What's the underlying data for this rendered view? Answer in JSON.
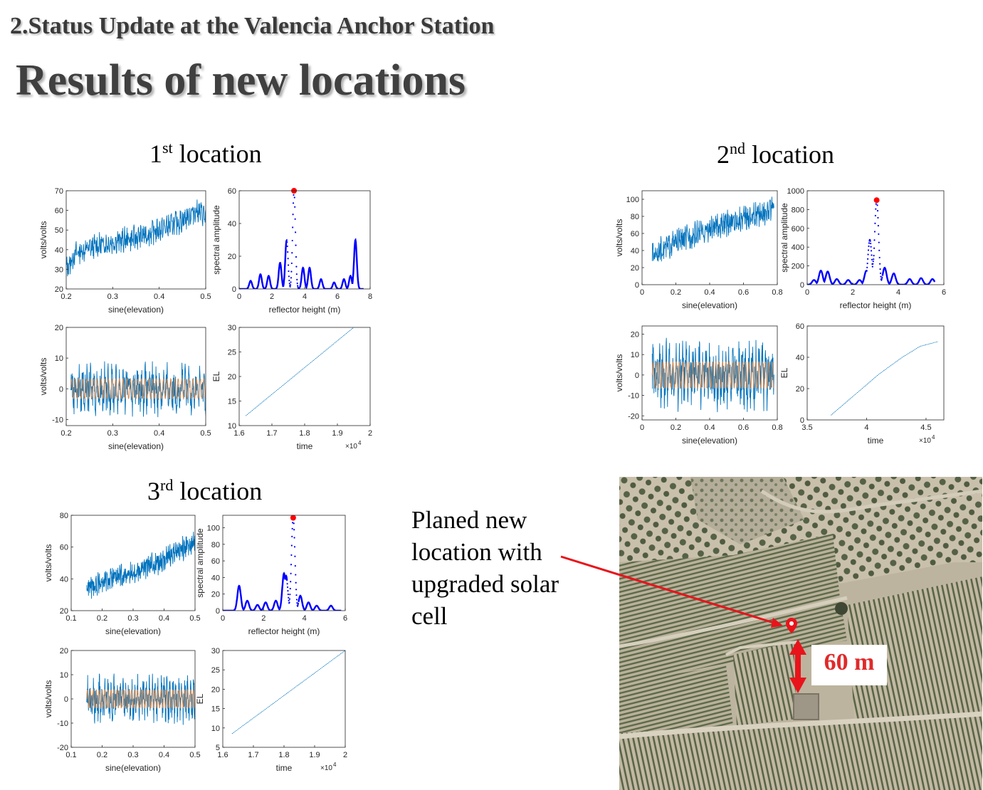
{
  "heading": {
    "section": "2.Status Update at the Valencia Anchor Station",
    "title": "Results of new locations"
  },
  "locations": [
    {
      "num": "1",
      "sup": "st",
      "word": "location"
    },
    {
      "num": "2",
      "sup": "nd",
      "word": "location"
    },
    {
      "num": "3",
      "sup": "rd",
      "word": "location"
    }
  ],
  "annotation": {
    "lines": [
      "Planed new",
      "location with",
      "upgraded solar",
      "cell"
    ],
    "distance": "60 m",
    "colors": {
      "arrow": "#e8141b",
      "distance_text": "#e02a2a"
    }
  },
  "colors": {
    "raw": "#0072bd",
    "fit": "#d08a55",
    "spectrum": "#0000ff",
    "peak": "#ff0000"
  },
  "chart_data": [
    {
      "id": "l1-raw",
      "location": 1,
      "type": "line",
      "kind": "raw",
      "xlabel": "sine(elevation)",
      "ylabel": "volts/volts",
      "xlim": [
        0.2,
        0.5
      ],
      "ylim": [
        20,
        70
      ],
      "xticks": [
        "0.2",
        "0.3",
        "0.4",
        "0.5"
      ],
      "yticks": [
        "20",
        "30",
        "40",
        "50",
        "60",
        "70"
      ],
      "trend": [
        [
          0.2,
          30
        ],
        [
          0.22,
          38
        ],
        [
          0.25,
          41
        ],
        [
          0.3,
          44
        ],
        [
          0.35,
          46
        ],
        [
          0.4,
          50
        ],
        [
          0.45,
          55
        ],
        [
          0.48,
          60
        ],
        [
          0.5,
          57
        ]
      ],
      "noise": 5
    },
    {
      "id": "l1-spec",
      "location": 1,
      "type": "line",
      "kind": "spectrum",
      "xlabel": "reflector height (m)",
      "ylabel": "spectral amplitude",
      "xlim": [
        0,
        8
      ],
      "ylim": [
        0,
        60
      ],
      "xticks": [
        "0",
        "2",
        "4",
        "6",
        "8"
      ],
      "yticks": [
        "0",
        "20",
        "40",
        "60"
      ],
      "peaks": [
        [
          0.7,
          5
        ],
        [
          1.3,
          9
        ],
        [
          1.8,
          8
        ],
        [
          2.5,
          16
        ],
        [
          2.9,
          30
        ],
        [
          3.35,
          60
        ],
        [
          3.9,
          13
        ],
        [
          4.3,
          13
        ],
        [
          5.0,
          6
        ],
        [
          5.8,
          4
        ],
        [
          6.4,
          6
        ],
        [
          6.8,
          8
        ],
        [
          7.1,
          30
        ]
      ],
      "dotted_range": [
        2.9,
        3.7
      ],
      "peak": [
        3.35,
        60
      ],
      "xmax_data": 7.6
    },
    {
      "id": "l1-detrended",
      "location": 1,
      "type": "line",
      "kind": "detrended",
      "xlabel": "sine(elevation)",
      "ylabel": "volts/volts",
      "xlim": [
        0.2,
        0.5
      ],
      "ylim": [
        -12,
        20
      ],
      "xticks": [
        "0.2",
        "0.3",
        "0.4",
        "0.5"
      ],
      "yticks": [
        "-10",
        "0",
        "10",
        "20"
      ],
      "amplitude": 6,
      "data_x": [
        0.21,
        0.5
      ]
    },
    {
      "id": "l1-el",
      "location": 1,
      "type": "line",
      "kind": "elevation",
      "xlabel": "time",
      "ylabel": "EL",
      "exponent": "×10",
      "exponent_power": "4",
      "xlim": [
        1.6,
        2.0
      ],
      "ylim": [
        10,
        30
      ],
      "xticks": [
        "1.6",
        "1.7",
        "1.8",
        "1.9",
        "2"
      ],
      "yticks": [
        "10",
        "15",
        "20",
        "25",
        "30"
      ],
      "x": [
        1.62,
        1.95
      ],
      "y": [
        12,
        30
      ]
    },
    {
      "id": "l2-raw",
      "location": 2,
      "type": "line",
      "kind": "raw",
      "xlabel": "sine(elevation)",
      "ylabel": "volts/volts",
      "xlim": [
        0,
        0.8
      ],
      "ylim": [
        0,
        110
      ],
      "xticks": [
        "0",
        "0.2",
        "0.4",
        "0.6",
        "0.8"
      ],
      "yticks": [
        "0",
        "20",
        "40",
        "60",
        "80",
        "100"
      ],
      "trend": [
        [
          0.06,
          35
        ],
        [
          0.2,
          50
        ],
        [
          0.4,
          65
        ],
        [
          0.6,
          78
        ],
        [
          0.78,
          88
        ]
      ],
      "noise": 12
    },
    {
      "id": "l2-spec",
      "location": 2,
      "type": "line",
      "kind": "spectrum",
      "xlabel": "reflector height (m)",
      "ylabel": "spectral amplitude",
      "xlim": [
        0,
        6
      ],
      "ylim": [
        0,
        1000
      ],
      "xticks": [
        "0",
        "2",
        "4",
        "6"
      ],
      "yticks": [
        "0",
        "200",
        "400",
        "600",
        "800",
        "1000"
      ],
      "peaks": [
        [
          0.3,
          50
        ],
        [
          0.6,
          150
        ],
        [
          0.9,
          140
        ],
        [
          1.3,
          60
        ],
        [
          1.8,
          50
        ],
        [
          2.3,
          50
        ],
        [
          2.6,
          150
        ],
        [
          2.75,
          480
        ],
        [
          2.95,
          300
        ],
        [
          3.05,
          900
        ],
        [
          3.4,
          180
        ],
        [
          3.8,
          120
        ],
        [
          4.5,
          60
        ],
        [
          5.0,
          70
        ],
        [
          5.5,
          60
        ]
      ],
      "dotted_range": [
        2.6,
        3.3
      ],
      "peak": [
        3.05,
        900
      ],
      "xmax_data": 5.6
    },
    {
      "id": "l2-detrended",
      "location": 2,
      "type": "line",
      "kind": "detrended",
      "xlabel": "sine(elevation)",
      "ylabel": "volts/volts",
      "xlim": [
        0,
        0.8
      ],
      "ylim": [
        -22,
        24
      ],
      "xticks": [
        "0",
        "0.2",
        "0.4",
        "0.6",
        "0.8"
      ],
      "yticks": [
        "-20",
        "-10",
        "0",
        "10",
        "20"
      ],
      "amplitude": 12,
      "data_x": [
        0.06,
        0.78
      ]
    },
    {
      "id": "l2-el",
      "location": 2,
      "type": "line",
      "kind": "elevation",
      "xlabel": "time",
      "ylabel": "EL",
      "exponent": "×10",
      "exponent_power": "4",
      "xlim": [
        3.5,
        4.65
      ],
      "ylim": [
        0,
        60
      ],
      "xticks": [
        "3.5",
        "4",
        "4.5"
      ],
      "yticks": [
        "0",
        "20",
        "40",
        "60"
      ],
      "x": [
        3.7,
        3.9,
        4.1,
        4.3,
        4.45,
        4.6
      ],
      "y": [
        3,
        16,
        29,
        40,
        47,
        50
      ]
    },
    {
      "id": "l3-raw",
      "location": 3,
      "type": "line",
      "kind": "raw",
      "xlabel": "sine(elevation)",
      "ylabel": "volts/volts",
      "xlim": [
        0.1,
        0.5
      ],
      "ylim": [
        20,
        80
      ],
      "xticks": [
        "0.1",
        "0.2",
        "0.3",
        "0.4",
        "0.5"
      ],
      "yticks": [
        "20",
        "40",
        "60",
        "80"
      ],
      "trend": [
        [
          0.15,
          34
        ],
        [
          0.2,
          38
        ],
        [
          0.3,
          44
        ],
        [
          0.35,
          48
        ],
        [
          0.4,
          52
        ],
        [
          0.45,
          58
        ],
        [
          0.5,
          62
        ]
      ],
      "noise": 6
    },
    {
      "id": "l3-spec",
      "location": 3,
      "type": "line",
      "kind": "spectrum",
      "xlabel": "reflector height (m)",
      "ylabel": "spectral amplitude",
      "xlim": [
        0,
        6
      ],
      "ylim": [
        0,
        115
      ],
      "xticks": [
        "0",
        "2",
        "4",
        "6"
      ],
      "yticks": [
        "0",
        "20",
        "40",
        "60",
        "80",
        "100"
      ],
      "peaks": [
        [
          0.8,
          30
        ],
        [
          1.2,
          12
        ],
        [
          1.7,
          7
        ],
        [
          2.1,
          10
        ],
        [
          2.6,
          12
        ],
        [
          3.0,
          45
        ],
        [
          3.1,
          42
        ],
        [
          3.45,
          112
        ],
        [
          3.8,
          18
        ],
        [
          4.2,
          10
        ],
        [
          4.6,
          6
        ],
        [
          5.3,
          6
        ]
      ],
      "dotted_range": [
        3.15,
        3.7
      ],
      "peak": [
        3.45,
        112
      ],
      "xmax_data": 5.8
    },
    {
      "id": "l3-detrended",
      "location": 3,
      "type": "line",
      "kind": "detrended",
      "xlabel": "sine(elevation)",
      "ylabel": "volts/volts",
      "xlim": [
        0.1,
        0.5
      ],
      "ylim": [
        -20,
        20
      ],
      "xticks": [
        "0.1",
        "0.2",
        "0.3",
        "0.4",
        "0.5"
      ],
      "yticks": [
        "-20",
        "-10",
        "0",
        "10",
        "20"
      ],
      "amplitude": 7,
      "data_x": [
        0.15,
        0.5
      ]
    },
    {
      "id": "l3-el",
      "location": 3,
      "type": "line",
      "kind": "elevation",
      "xlabel": "time",
      "ylabel": "EL",
      "exponent": "×10",
      "exponent_power": "4",
      "xlim": [
        1.6,
        2.0
      ],
      "ylim": [
        5,
        30
      ],
      "xticks": [
        "1.6",
        "1.7",
        "1.8",
        "1.9",
        "2"
      ],
      "yticks": [
        "5",
        "10",
        "15",
        "20",
        "25",
        "30"
      ],
      "x": [
        1.63,
        2.0
      ],
      "y": [
        8.5,
        30
      ]
    }
  ]
}
